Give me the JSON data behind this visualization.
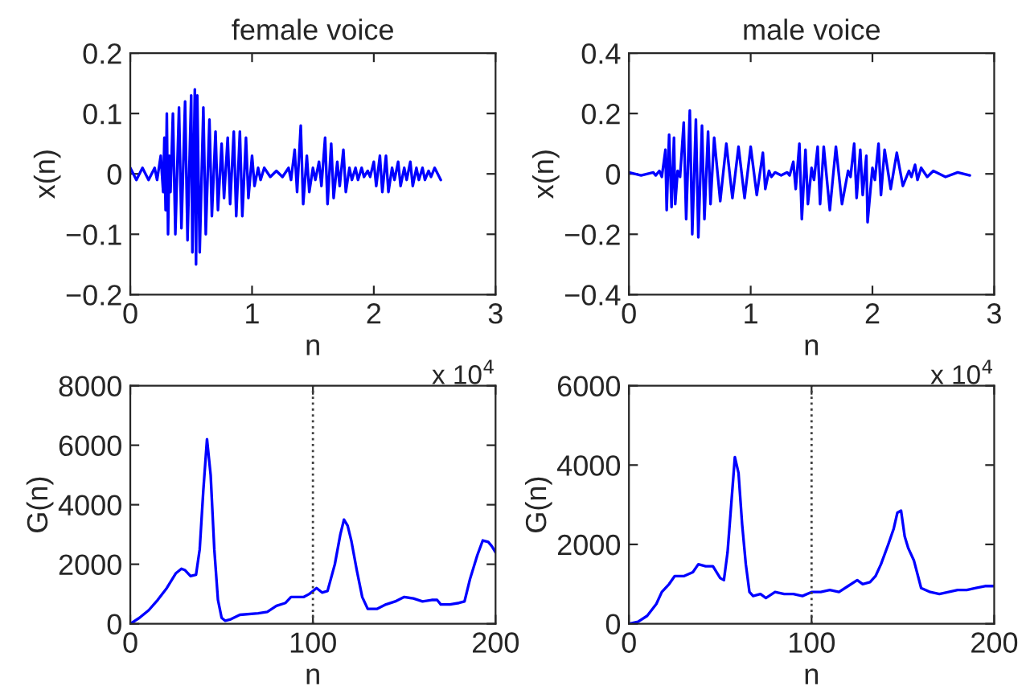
{
  "chart_data": [
    {
      "type": "line",
      "title": "female voice",
      "xlabel": "n",
      "ylabel": "x(n)",
      "annotations": [
        "x 10$^{4}$"
      ],
      "xlim": [
        0,
        3
      ],
      "xticks": [
        0,
        1,
        2,
        3
      ],
      "ylim": [
        -0.2,
        0.2
      ],
      "yticks": [
        -0.2,
        -0.1,
        0,
        0.1,
        0.2
      ],
      "series": [
        {
          "color": "#0000ff",
          "x": [
            0,
            0.05,
            0.1,
            0.15,
            0.2,
            0.22,
            0.25,
            0.27,
            0.28,
            0.29,
            0.3,
            0.31,
            0.32,
            0.33,
            0.35,
            0.37,
            0.4,
            0.42,
            0.45,
            0.47,
            0.5,
            0.51,
            0.53,
            0.54,
            0.55,
            0.57,
            0.6,
            0.62,
            0.65,
            0.67,
            0.7,
            0.72,
            0.75,
            0.77,
            0.8,
            0.82,
            0.85,
            0.87,
            0.9,
            0.92,
            0.95,
            0.97,
            1.0,
            1.02,
            1.05,
            1.07,
            1.1,
            1.15,
            1.2,
            1.25,
            1.3,
            1.32,
            1.35,
            1.37,
            1.4,
            1.42,
            1.45,
            1.47,
            1.5,
            1.52,
            1.55,
            1.57,
            1.6,
            1.62,
            1.65,
            1.67,
            1.7,
            1.72,
            1.75,
            1.77,
            1.8,
            1.82,
            1.85,
            1.87,
            1.9,
            1.92,
            1.95,
            1.97,
            2.0,
            2.02,
            2.05,
            2.07,
            2.1,
            2.12,
            2.15,
            2.17,
            2.2,
            2.22,
            2.25,
            2.27,
            2.3,
            2.32,
            2.35,
            2.37,
            2.4,
            2.42,
            2.45,
            2.47,
            2.5,
            2.55
          ],
          "values": [
            0.01,
            -0.01,
            0.01,
            -0.01,
            0.01,
            -0.01,
            0.03,
            -0.03,
            0.06,
            -0.06,
            0.1,
            -0.1,
            0.03,
            -0.03,
            0.1,
            -0.1,
            0.11,
            -0.09,
            0.12,
            -0.11,
            0.13,
            -0.13,
            0.14,
            -0.15,
            0.13,
            -0.13,
            0.11,
            -0.1,
            0.09,
            -0.07,
            0.07,
            -0.06,
            0.05,
            -0.04,
            0.06,
            -0.05,
            0.07,
            -0.07,
            0.07,
            -0.07,
            0.06,
            -0.04,
            0.03,
            -0.02,
            0.01,
            -0.01,
            0.01,
            -0.005,
            0.005,
            -0.005,
            0.01,
            -0.01,
            0.04,
            -0.03,
            0.08,
            -0.05,
            0.03,
            -0.03,
            0.01,
            -0.01,
            0.02,
            -0.02,
            0.06,
            -0.05,
            0.05,
            -0.04,
            0.02,
            -0.02,
            0.04,
            -0.03,
            0.01,
            -0.01,
            0.01,
            -0.01,
            0.01,
            -0.005,
            0.005,
            -0.005,
            0.02,
            -0.02,
            0.03,
            -0.03,
            0.03,
            -0.03,
            0.01,
            -0.01,
            0.02,
            -0.02,
            0.01,
            -0.01,
            0.02,
            -0.02,
            0.01,
            -0.01,
            0.01,
            -0.01,
            0.005,
            -0.005,
            0.01,
            -0.01
          ]
        }
      ]
    },
    {
      "type": "line",
      "title": "male voice",
      "xlabel": "n",
      "ylabel": "x(n)",
      "annotations": [
        "x 10$^{4}$"
      ],
      "xlim": [
        0,
        3
      ],
      "xticks": [
        0,
        1,
        2,
        3
      ],
      "ylim": [
        -0.4,
        0.4
      ],
      "yticks": [
        -0.4,
        -0.2,
        0,
        0.2,
        0.4
      ],
      "series": [
        {
          "color": "#0000ff",
          "x": [
            0,
            0.1,
            0.2,
            0.22,
            0.25,
            0.27,
            0.3,
            0.31,
            0.33,
            0.35,
            0.37,
            0.38,
            0.4,
            0.42,
            0.45,
            0.47,
            0.5,
            0.52,
            0.55,
            0.57,
            0.6,
            0.62,
            0.65,
            0.67,
            0.7,
            0.75,
            0.8,
            0.85,
            0.9,
            0.95,
            1.0,
            1.05,
            1.1,
            1.12,
            1.15,
            1.17,
            1.2,
            1.25,
            1.3,
            1.32,
            1.35,
            1.37,
            1.4,
            1.42,
            1.45,
            1.47,
            1.5,
            1.52,
            1.55,
            1.57,
            1.6,
            1.65,
            1.7,
            1.75,
            1.8,
            1.82,
            1.85,
            1.87,
            1.9,
            1.92,
            1.95,
            1.96,
            2.0,
            2.02,
            2.05,
            2.07,
            2.1,
            2.15,
            2.2,
            2.25,
            2.3,
            2.32,
            2.35,
            2.37,
            2.4,
            2.45,
            2.5,
            2.6,
            2.7,
            2.8
          ],
          "values": [
            0.005,
            -0.005,
            0.005,
            -0.005,
            0.01,
            -0.01,
            0.08,
            -0.12,
            0.13,
            -0.11,
            0.12,
            -0.1,
            0.01,
            -0.01,
            0.17,
            -0.15,
            0.21,
            -0.2,
            0.18,
            -0.21,
            0.16,
            -0.15,
            0.14,
            -0.1,
            0.12,
            -0.09,
            0.1,
            -0.08,
            0.09,
            -0.08,
            0.09,
            -0.07,
            0.07,
            -0.05,
            0.01,
            -0.01,
            0.005,
            -0.005,
            0.005,
            -0.005,
            0.04,
            -0.05,
            0.1,
            -0.15,
            0.08,
            -0.1,
            0.02,
            -0.02,
            0.09,
            -0.1,
            0.09,
            -0.12,
            0.09,
            -0.1,
            0.01,
            -0.01,
            0.1,
            -0.08,
            0.08,
            -0.07,
            0.06,
            -0.16,
            0.02,
            -0.02,
            0.1,
            -0.07,
            0.08,
            -0.05,
            0.07,
            -0.04,
            0.01,
            -0.01,
            0.03,
            -0.02,
            0.02,
            -0.01,
            0.01,
            -0.01,
            0.005,
            -0.005
          ]
        }
      ]
    },
    {
      "type": "line",
      "xlabel": "n",
      "ylabel": "G(n)",
      "xlim": [
        0,
        200
      ],
      "xticks": [
        0,
        100,
        200
      ],
      "ylim": [
        0,
        8000
      ],
      "yticks": [
        0,
        2000,
        4000,
        6000,
        8000
      ],
      "ref_lines": [
        {
          "axis": "x",
          "value": 100,
          "color": "#404040",
          "line_style": "dotted"
        }
      ],
      "series": [
        {
          "color": "#0000ff",
          "x": [
            0,
            5,
            10,
            15,
            20,
            25,
            28,
            30,
            33,
            36,
            38,
            40,
            42,
            44,
            46,
            48,
            50,
            52,
            55,
            60,
            70,
            75,
            80,
            85,
            88,
            95,
            98,
            100,
            102,
            105,
            108,
            112,
            115,
            117,
            119,
            121,
            124,
            127,
            130,
            135,
            140,
            145,
            150,
            155,
            160,
            165,
            168,
            170,
            175,
            180,
            183,
            186,
            190,
            193,
            196,
            198,
            200
          ],
          "values": [
            0,
            200,
            450,
            800,
            1200,
            1700,
            1850,
            1800,
            1600,
            1650,
            2500,
            4500,
            6200,
            5000,
            2500,
            800,
            200,
            100,
            150,
            300,
            350,
            400,
            600,
            700,
            900,
            900,
            1000,
            1100,
            1200,
            1050,
            1100,
            2000,
            3000,
            3500,
            3300,
            2800,
            1800,
            900,
            500,
            500,
            650,
            750,
            900,
            850,
            750,
            800,
            800,
            650,
            650,
            700,
            750,
            1500,
            2300,
            2800,
            2750,
            2600,
            2400
          ]
        }
      ]
    },
    {
      "type": "line",
      "xlabel": "n",
      "ylabel": "G(n)",
      "xlim": [
        0,
        200
      ],
      "xticks": [
        0,
        100,
        200
      ],
      "ylim": [
        0,
        6000
      ],
      "yticks": [
        0,
        2000,
        4000,
        6000
      ],
      "ref_lines": [
        {
          "axis": "x",
          "value": 100,
          "color": "#404040",
          "line_style": "dotted"
        }
      ],
      "series": [
        {
          "color": "#0000ff",
          "x": [
            0,
            5,
            10,
            15,
            18,
            22,
            25,
            30,
            35,
            38,
            42,
            46,
            50,
            52,
            54,
            56,
            58,
            60,
            62,
            64,
            66,
            68,
            72,
            75,
            80,
            85,
            90,
            95,
            100,
            105,
            110,
            115,
            120,
            125,
            128,
            132,
            135,
            138,
            142,
            145,
            147,
            149,
            151,
            153,
            156,
            160,
            165,
            170,
            175,
            180,
            185,
            190,
            195,
            200
          ],
          "values": [
            0,
            50,
            200,
            500,
            800,
            1000,
            1200,
            1200,
            1300,
            1500,
            1450,
            1450,
            1150,
            1100,
            1800,
            3000,
            4200,
            3800,
            2500,
            1500,
            800,
            700,
            750,
            650,
            800,
            750,
            750,
            700,
            800,
            800,
            850,
            800,
            950,
            1100,
            1000,
            1050,
            1200,
            1500,
            2000,
            2400,
            2800,
            2850,
            2200,
            1900,
            1600,
            900,
            800,
            750,
            800,
            850,
            850,
            900,
            950,
            950
          ]
        }
      ]
    }
  ]
}
